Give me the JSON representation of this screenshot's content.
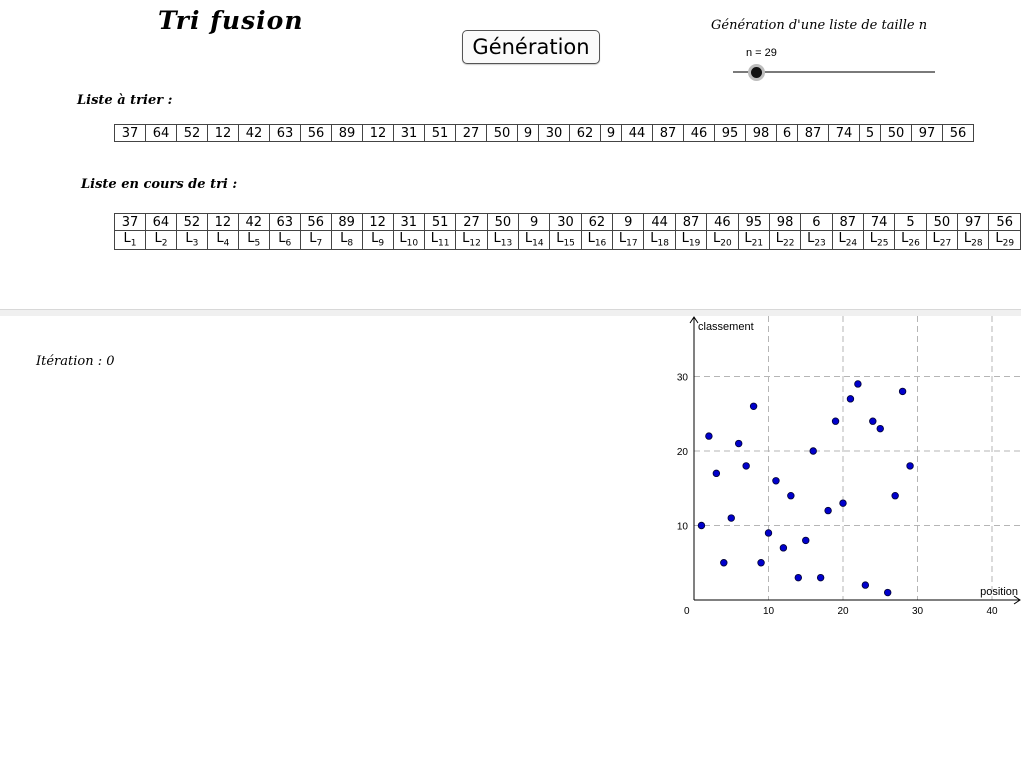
{
  "title": "Tri fusion",
  "generate_button": "Génération",
  "generation_label": "Génération d'une liste de taille n",
  "slider": {
    "label": "n = 29",
    "value": 29
  },
  "list_to_sort": {
    "label": "Liste à trier  :",
    "values": [
      "37",
      "64",
      "52",
      "12",
      "42",
      "63",
      "56",
      "89",
      "12",
      "31",
      "51",
      "27",
      "50",
      "9",
      "30",
      "62",
      "9",
      "44",
      "87",
      "46",
      "95",
      "98",
      "6",
      "87",
      "74",
      "5",
      "50",
      "97",
      "56"
    ]
  },
  "list_in_progress": {
    "label": "Liste en cours de tri  :",
    "values": [
      "37",
      "64",
      "52",
      "12",
      "42",
      "63",
      "56",
      "89",
      "12",
      "31",
      "51",
      "27",
      "50",
      "9",
      "30",
      "62",
      "9",
      "44",
      "87",
      "46",
      "95",
      "98",
      "6",
      "87",
      "74",
      "5",
      "50",
      "97",
      "56"
    ],
    "index_prefix": "L",
    "indices": [
      "1",
      "2",
      "3",
      "4",
      "5",
      "6",
      "7",
      "8",
      "9",
      "10",
      "11",
      "12",
      "13",
      "14",
      "15",
      "16",
      "17",
      "18",
      "19",
      "20",
      "21",
      "22",
      "23",
      "24",
      "25",
      "26",
      "27",
      "28",
      "29"
    ]
  },
  "iteration": {
    "label": "Itération  :  0"
  },
  "chart_data": {
    "type": "scatter",
    "xlabel": "position",
    "ylabel": "classement",
    "xlim": [
      -1,
      45
    ],
    "ylim": [
      -1,
      38
    ],
    "x_ticks": [
      "0",
      "10",
      "20",
      "30",
      "40"
    ],
    "y_ticks": [
      "10",
      "20",
      "30"
    ],
    "grid": true,
    "point_color": "#0000cc",
    "points": [
      {
        "x": 1,
        "y": 10
      },
      {
        "x": 2,
        "y": 22
      },
      {
        "x": 3,
        "y": 17
      },
      {
        "x": 4,
        "y": 5
      },
      {
        "x": 5,
        "y": 11
      },
      {
        "x": 6,
        "y": 21
      },
      {
        "x": 7,
        "y": 18
      },
      {
        "x": 8,
        "y": 26
      },
      {
        "x": 9,
        "y": 5
      },
      {
        "x": 10,
        "y": 9
      },
      {
        "x": 11,
        "y": 16
      },
      {
        "x": 12,
        "y": 7
      },
      {
        "x": 13,
        "y": 14
      },
      {
        "x": 14,
        "y": 3
      },
      {
        "x": 15,
        "y": 8
      },
      {
        "x": 16,
        "y": 20
      },
      {
        "x": 17,
        "y": 3
      },
      {
        "x": 18,
        "y": 12
      },
      {
        "x": 19,
        "y": 24
      },
      {
        "x": 20,
        "y": 13
      },
      {
        "x": 21,
        "y": 27
      },
      {
        "x": 22,
        "y": 29
      },
      {
        "x": 23,
        "y": 2
      },
      {
        "x": 24,
        "y": 24
      },
      {
        "x": 25,
        "y": 23
      },
      {
        "x": 26,
        "y": 1
      },
      {
        "x": 27,
        "y": 14
      },
      {
        "x": 28,
        "y": 28
      },
      {
        "x": 29,
        "y": 18
      }
    ]
  }
}
